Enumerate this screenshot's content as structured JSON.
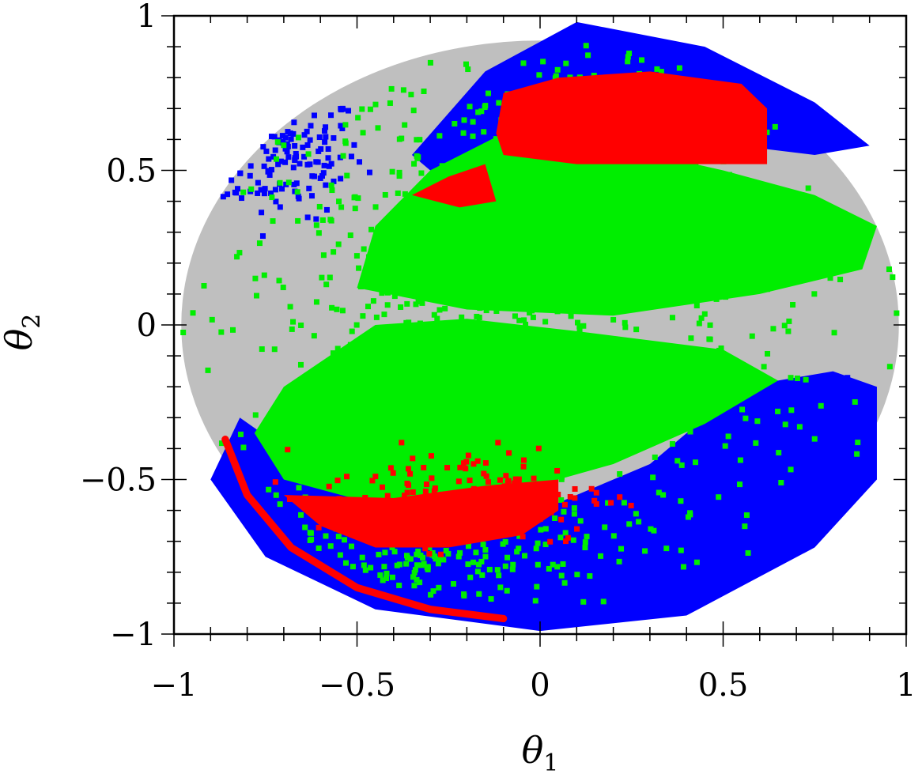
{
  "chart_data": {
    "type": "scatter",
    "xlabel": "θ",
    "xlabel_sub": "1",
    "ylabel": "θ",
    "ylabel_sub": "2",
    "xlim": [
      -1,
      1
    ],
    "ylim": [
      -1,
      1
    ],
    "x_ticks": [
      -1,
      -0.5,
      0,
      0.5,
      1
    ],
    "y_ticks": [
      -1,
      -0.5,
      0,
      0.5,
      1
    ],
    "x_tick_labels": [
      "−1",
      "−0.5",
      "0",
      "0.5",
      "1"
    ],
    "y_tick_labels": [
      "−1",
      "−0.5",
      "0",
      "0.5",
      "1"
    ],
    "grid": false,
    "series": [
      {
        "color": "#bfbfbf",
        "regions": [
          {
            "shape": "ellipse",
            "cx": 0,
            "cy": 0,
            "rx": 0.98,
            "ry": 0.92
          }
        ]
      },
      {
        "color": "#0000ff",
        "regions": [
          {
            "shape": "polygon",
            "points": [
              [
                -0.35,
                0.55
              ],
              [
                -0.15,
                0.82
              ],
              [
                0.1,
                0.98
              ],
              [
                0.45,
                0.9
              ],
              [
                0.75,
                0.72
              ],
              [
                0.9,
                0.58
              ],
              [
                0.75,
                0.55
              ],
              [
                0.4,
                0.6
              ],
              [
                0.0,
                0.66
              ],
              [
                -0.3,
                0.5
              ]
            ]
          },
          {
            "shape": "polygon",
            "points": [
              [
                -0.82,
                -0.3
              ],
              [
                -0.9,
                -0.5
              ],
              [
                -0.75,
                -0.75
              ],
              [
                -0.45,
                -0.92
              ],
              [
                0.0,
                -0.99
              ],
              [
                0.4,
                -0.94
              ],
              [
                0.75,
                -0.72
              ],
              [
                0.92,
                -0.5
              ],
              [
                0.92,
                -0.2
              ],
              [
                0.8,
                -0.15
              ],
              [
                0.55,
                -0.2
              ],
              [
                0.3,
                -0.45
              ],
              [
                0.0,
                -0.6
              ],
              [
                -0.4,
                -0.6
              ],
              [
                -0.7,
                -0.4
              ]
            ]
          }
        ],
        "clusters": [
          {
            "cx": -0.72,
            "cy": 0.55,
            "sx": 0.12,
            "sy": 0.1,
            "n": 180
          },
          {
            "cx": 0.75,
            "cy": -0.45,
            "sx": 0.1,
            "sy": 0.12,
            "n": 160
          }
        ]
      },
      {
        "color": "#00ee00",
        "regions": [
          {
            "shape": "polygon",
            "points": [
              [
                -0.5,
                0.12
              ],
              [
                -0.45,
                0.32
              ],
              [
                -0.3,
                0.5
              ],
              [
                -0.1,
                0.62
              ],
              [
                0.2,
                0.58
              ],
              [
                0.5,
                0.5
              ],
              [
                0.75,
                0.42
              ],
              [
                0.92,
                0.32
              ],
              [
                0.88,
                0.18
              ],
              [
                0.6,
                0.1
              ],
              [
                0.2,
                0.03
              ],
              [
                -0.2,
                0.05
              ]
            ]
          },
          {
            "shape": "polygon",
            "points": [
              [
                -0.7,
                -0.2
              ],
              [
                -0.45,
                0.0
              ],
              [
                -0.2,
                0.02
              ],
              [
                0.1,
                -0.02
              ],
              [
                0.5,
                -0.08
              ],
              [
                0.65,
                -0.18
              ],
              [
                0.45,
                -0.32
              ],
              [
                0.2,
                -0.45
              ],
              [
                -0.1,
                -0.55
              ],
              [
                -0.45,
                -0.58
              ],
              [
                -0.7,
                -0.5
              ],
              [
                -0.78,
                -0.35
              ]
            ]
          }
        ],
        "clusters": [
          {
            "cx": -0.1,
            "cy": 0.0,
            "sx": 0.45,
            "sy": 0.4,
            "n": 900
          },
          {
            "cx": -0.35,
            "cy": -0.75,
            "sx": 0.25,
            "sy": 0.08,
            "n": 220
          },
          {
            "cx": 0.1,
            "cy": 0.7,
            "sx": 0.25,
            "sy": 0.1,
            "n": 120
          }
        ]
      },
      {
        "color": "#ff0000",
        "regions": [
          {
            "shape": "polygon",
            "points": [
              [
                -0.12,
                0.62
              ],
              [
                -0.1,
                0.75
              ],
              [
                0.05,
                0.8
              ],
              [
                0.3,
                0.82
              ],
              [
                0.55,
                0.78
              ],
              [
                0.62,
                0.7
              ],
              [
                0.62,
                0.52
              ],
              [
                0.4,
                0.52
              ],
              [
                0.1,
                0.52
              ],
              [
                -0.1,
                0.55
              ]
            ]
          },
          {
            "shape": "polygon",
            "points": [
              [
                -0.35,
                0.42
              ],
              [
                -0.25,
                0.48
              ],
              [
                -0.15,
                0.52
              ],
              [
                -0.12,
                0.4
              ],
              [
                -0.22,
                0.38
              ]
            ]
          },
          {
            "shape": "polygon",
            "points": [
              [
                -0.7,
                -0.55
              ],
              [
                -0.6,
                -0.65
              ],
              [
                -0.45,
                -0.72
              ],
              [
                -0.25,
                -0.72
              ],
              [
                -0.05,
                -0.68
              ],
              [
                0.05,
                -0.6
              ],
              [
                0.05,
                -0.5
              ],
              [
                -0.15,
                -0.52
              ],
              [
                -0.4,
                -0.56
              ]
            ]
          },
          {
            "shape": "arc",
            "points": [
              [
                -0.86,
                -0.37
              ],
              [
                -0.8,
                -0.55
              ],
              [
                -0.68,
                -0.72
              ],
              [
                -0.5,
                -0.85
              ],
              [
                -0.3,
                -0.92
              ],
              [
                -0.1,
                -0.95
              ]
            ],
            "width": 0.02
          }
        ],
        "clusters": [
          {
            "cx": -0.2,
            "cy": -0.55,
            "sx": 0.2,
            "sy": 0.08,
            "n": 160
          }
        ]
      }
    ]
  }
}
